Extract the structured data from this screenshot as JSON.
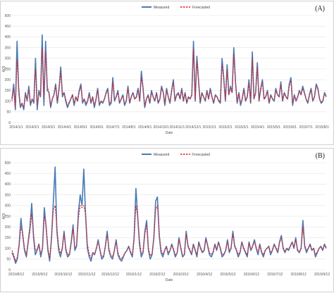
{
  "chart_data": [
    {
      "type": "line",
      "panel_label": "(A)",
      "xlabel": "Date",
      "ylabel": "AQI",
      "ylim": [
        0,
        500
      ],
      "yticks": [
        0,
        50,
        100,
        150,
        200,
        250,
        300,
        350,
        400,
        450,
        500
      ],
      "xticks": [
        "2014/1/1",
        "2014/2/1",
        "2014/3/1",
        "2014/4/1",
        "2014/5/1",
        "2014/6/1",
        "2014/7/1",
        "2014/8/1",
        "2014/9/1",
        "2014/10/1",
        "2014/11/1",
        "2014/12/1",
        "2015/1/1",
        "2015/2/1",
        "2015/3/1",
        "2015/4/1",
        "2015/5/1",
        "2015/6/1",
        "2015/7/1",
        "2015/8/1"
      ],
      "grid": true,
      "legend_position": "top-center",
      "series": [
        {
          "name": "Measured",
          "color": "#4a7ab5",
          "style": "solid",
          "values": [
            110,
            180,
            60,
            380,
            150,
            70,
            90,
            60,
            140,
            100,
            170,
            80,
            110,
            90,
            300,
            60,
            150,
            120,
            410,
            80,
            380,
            150,
            140,
            70,
            110,
            130,
            180,
            90,
            160,
            260,
            120,
            140,
            100,
            70,
            90,
            110,
            130,
            80,
            120,
            100,
            150,
            180,
            90,
            110,
            80,
            100,
            140,
            90,
            120,
            70,
            110,
            160,
            80,
            100,
            90,
            110,
            140,
            160,
            80,
            90,
            210,
            100,
            120,
            150,
            90,
            110,
            130,
            80,
            100,
            170,
            90,
            120,
            140,
            110,
            120,
            160,
            100,
            240,
            160,
            70,
            110,
            130,
            90,
            150,
            120,
            100,
            140,
            90,
            110,
            170,
            140,
            80,
            160,
            120,
            90,
            150,
            200,
            100,
            130,
            140,
            110,
            160,
            100,
            140,
            90,
            120,
            110,
            130,
            380,
            100,
            310,
            200,
            90,
            140,
            120,
            100,
            150,
            110,
            160,
            120,
            90,
            130,
            120,
            100,
            90,
            300,
            210,
            100,
            270,
            130,
            170,
            140,
            350,
            190,
            90,
            140,
            80,
            110,
            160,
            100,
            120,
            200,
            90,
            330,
            110,
            140,
            280,
            100,
            160,
            200,
            110,
            120,
            150,
            90,
            130,
            110,
            100,
            160,
            130,
            120,
            190,
            100,
            140,
            120,
            110,
            180,
            210,
            80,
            130,
            100,
            120,
            150,
            130,
            170,
            140,
            110,
            90,
            130,
            160,
            100,
            120,
            180,
            160,
            110,
            90,
            100,
            140,
            120
          ]
        },
        {
          "name": "Forecasted",
          "color": "#e02020",
          "style": "dashed",
          "values": [
            100,
            160,
            70,
            290,
            170,
            80,
            90,
            70,
            130,
            110,
            150,
            90,
            110,
            100,
            250,
            80,
            140,
            130,
            350,
            110,
            330,
            170,
            140,
            80,
            110,
            130,
            170,
            100,
            150,
            240,
            130,
            140,
            110,
            80,
            95,
            110,
            130,
            90,
            120,
            100,
            140,
            170,
            100,
            110,
            90,
            100,
            130,
            95,
            120,
            80,
            110,
            150,
            90,
            100,
            95,
            110,
            135,
            150,
            90,
            95,
            190,
            110,
            120,
            140,
            95,
            110,
            125,
            90,
            100,
            160,
            95,
            120,
            135,
            110,
            115,
            150,
            105,
            210,
            160,
            80,
            110,
            125,
            95,
            140,
            120,
            105,
            135,
            95,
            110,
            160,
            140,
            90,
            150,
            120,
            95,
            145,
            190,
            105,
            125,
            135,
            110,
            150,
            105,
            135,
            95,
            120,
            110,
            125,
            340,
            110,
            290,
            200,
            95,
            135,
            120,
            105,
            145,
            110,
            150,
            120,
            95,
            125,
            120,
            105,
            95,
            270,
            200,
            105,
            250,
            130,
            160,
            140,
            320,
            185,
            95,
            135,
            90,
            110,
            150,
            105,
            120,
            185,
            95,
            300,
            115,
            135,
            260,
            105,
            150,
            190,
            110,
            120,
            145,
            95,
            125,
            110,
            105,
            150,
            130,
            120,
            180,
            105,
            135,
            120,
            110,
            170,
            195,
            90,
            125,
            105,
            120,
            145,
            130,
            160,
            135,
            110,
            95,
            125,
            150,
            105,
            120,
            170,
            155,
            110,
            95,
            105,
            135,
            120
          ]
        }
      ]
    },
    {
      "type": "line",
      "panel_label": "(B)",
      "xlabel": "Date",
      "ylabel": "AQI",
      "ylim": [
        0,
        500
      ],
      "yticks": [
        0,
        50,
        100,
        150,
        200,
        250,
        300,
        350,
        400,
        450,
        500
      ],
      "xticks": [
        "2015/8/12",
        "2015/9/12",
        "2015/10/12",
        "2015/11/12",
        "2015/12/12",
        "2016/1/12",
        "2016/2/12",
        "2016/3/12",
        "2016/4/12",
        "2016/5/12",
        "2016/6/12",
        "2016/7/12",
        "2016/8/12",
        "2016/9/12"
      ],
      "grid": true,
      "legend_position": "top-center",
      "series": [
        {
          "name": "Measured",
          "color": "#4a7ab5",
          "style": "solid",
          "values": [
            80,
            60,
            30,
            50,
            120,
            240,
            160,
            90,
            60,
            130,
            200,
            310,
            150,
            70,
            90,
            120,
            60,
            100,
            290,
            200,
            90,
            40,
            150,
            310,
            480,
            180,
            90,
            60,
            100,
            180,
            90,
            60,
            70,
            130,
            210,
            90,
            110,
            270,
            350,
            300,
            470,
            250,
            100,
            60,
            40,
            80,
            70,
            100,
            140,
            90,
            50,
            60,
            110,
            180,
            90,
            60,
            50,
            90,
            140,
            70,
            50,
            40,
            60,
            80,
            90,
            110,
            80,
            60,
            150,
            380,
            250,
            120,
            60,
            80,
            180,
            230,
            90,
            50,
            70,
            150,
            320,
            340,
            160,
            80,
            60,
            90,
            110,
            70,
            90,
            120,
            90,
            60,
            80,
            150,
            100,
            60,
            70,
            180,
            110,
            90,
            70,
            120,
            90,
            60,
            130,
            100,
            80,
            90,
            150,
            110,
            70,
            60,
            80,
            120,
            90,
            130,
            100,
            60,
            70,
            90,
            140,
            80,
            100,
            180,
            110,
            90,
            60,
            80,
            130,
            100,
            80,
            60,
            130,
            90,
            110,
            140,
            100,
            70,
            120,
            80,
            60,
            90,
            100,
            110,
            70,
            90,
            120,
            100,
            80,
            130,
            160,
            100,
            80,
            100,
            90,
            110,
            130,
            100,
            150,
            90,
            80,
            100,
            230,
            110,
            80,
            100,
            120,
            90,
            100,
            60,
            80,
            100,
            110,
            90,
            120,
            100
          ]
        },
        {
          "name": "Forecasted",
          "color": "#e02020",
          "style": "dashed",
          "values": [
            90,
            70,
            40,
            60,
            110,
            200,
            170,
            100,
            70,
            120,
            180,
            260,
            170,
            90,
            95,
            115,
            75,
            100,
            250,
            210,
            100,
            55,
            140,
            280,
            300,
            200,
            110,
            75,
            100,
            170,
            100,
            70,
            75,
            125,
            190,
            105,
            110,
            240,
            300,
            290,
            300,
            260,
            120,
            75,
            55,
            80,
            75,
            100,
            130,
            95,
            60,
            65,
            105,
            165,
            100,
            70,
            60,
            90,
            130,
            80,
            60,
            50,
            65,
            80,
            90,
            105,
            85,
            70,
            140,
            300,
            250,
            140,
            75,
            85,
            165,
            210,
            100,
            65,
            75,
            140,
            280,
            300,
            170,
            95,
            70,
            90,
            105,
            80,
            90,
            115,
            95,
            70,
            80,
            140,
            105,
            70,
            75,
            165,
            115,
            95,
            75,
            115,
            95,
            70,
            125,
            105,
            85,
            90,
            140,
            115,
            80,
            70,
            85,
            115,
            95,
            125,
            105,
            70,
            75,
            90,
            130,
            90,
            100,
            165,
            115,
            95,
            70,
            85,
            125,
            105,
            85,
            70,
            125,
            95,
            110,
            130,
            105,
            80,
            115,
            85,
            70,
            90,
            100,
            110,
            80,
            90,
            115,
            105,
            85,
            125,
            150,
            105,
            85,
            100,
            95,
            110,
            125,
            105,
            140,
            95,
            85,
            100,
            200,
            115,
            90,
            100,
            115,
            95,
            100,
            70,
            85,
            100,
            105,
            95,
            115,
            100
          ]
        }
      ]
    }
  ]
}
